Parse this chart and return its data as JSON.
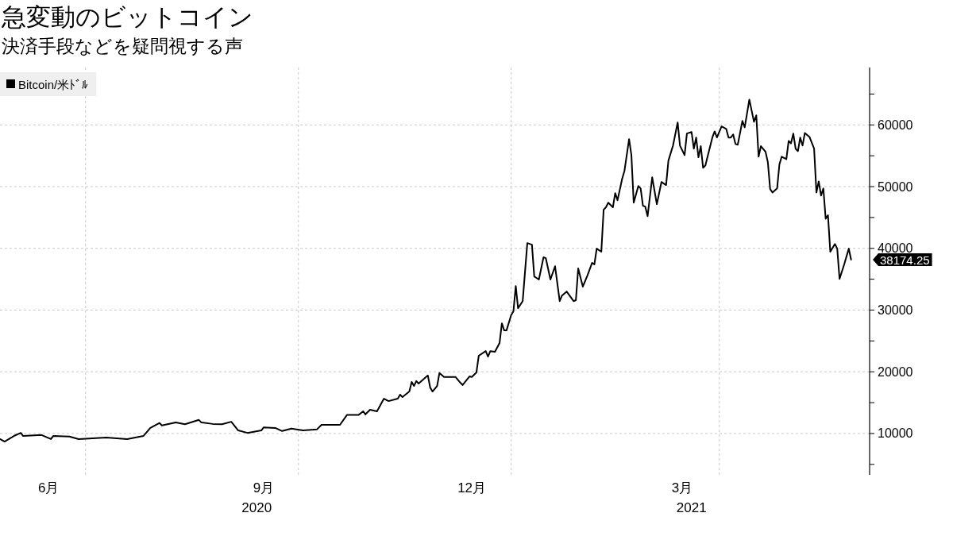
{
  "chart_data": {
    "type": "line",
    "title": "急変動のビットコイン",
    "subtitle": "決済手段などを疑問視する声",
    "x": [
      "2020-05-25",
      "2020-05-27",
      "2020-05-31",
      "2020-06-03",
      "2020-06-04",
      "2020-06-12",
      "2020-06-16",
      "2020-06-17",
      "2020-06-24",
      "2020-06-28",
      "2020-07-10",
      "2020-07-19",
      "2020-07-26",
      "2020-07-29",
      "2020-08-02",
      "2020-08-03",
      "2020-08-09",
      "2020-08-13",
      "2020-08-19",
      "2020-08-20",
      "2020-08-25",
      "2020-08-29",
      "2020-09-02",
      "2020-09-05",
      "2020-09-09",
      "2020-09-15",
      "2020-09-16",
      "2020-09-21",
      "2020-09-24",
      "2020-09-28",
      "2020-10-03",
      "2020-10-09",
      "2020-10-11",
      "2020-10-19",
      "2020-10-22",
      "2020-10-27",
      "2020-10-29",
      "2020-10-30",
      "2020-11-01",
      "2020-11-04",
      "2020-11-07",
      "2020-11-09",
      "2020-11-13",
      "2020-11-14",
      "2020-11-15",
      "2020-11-18",
      "2020-11-19",
      "2020-11-20",
      "2020-11-21",
      "2020-11-22",
      "2020-11-26",
      "2020-11-27",
      "2020-11-28",
      "2020-11-30",
      "2020-12-01",
      "2020-12-03",
      "2020-12-08",
      "2020-12-10",
      "2020-12-11",
      "2020-12-14",
      "2020-12-15",
      "2020-12-17",
      "2020-12-18",
      "2020-12-21",
      "2020-12-22",
      "2020-12-23",
      "2020-12-25",
      "2020-12-27",
      "2020-12-28",
      "2020-12-29",
      "2020-12-30",
      "2021-01-01",
      "2021-01-02",
      "2021-01-03",
      "2021-01-04",
      "2021-01-06",
      "2021-01-08",
      "2021-01-10",
      "2021-01-11",
      "2021-01-13",
      "2021-01-15",
      "2021-01-16",
      "2021-01-18",
      "2021-01-20",
      "2021-01-22",
      "2021-01-23",
      "2021-01-25",
      "2021-01-28",
      "2021-01-29",
      "2021-01-30",
      "2021-02-01",
      "2021-02-03",
      "2021-02-05",
      "2021-02-06",
      "2021-02-07",
      "2021-02-09",
      "2021-02-10",
      "2021-02-11",
      "2021-02-12",
      "2021-02-14",
      "2021-02-15",
      "2021-02-16",
      "2021-02-18",
      "2021-02-19",
      "2021-02-21",
      "2021-02-22",
      "2021-02-23",
      "2021-02-25",
      "2021-02-26",
      "2021-02-27",
      "2021-02-28",
      "2021-03-01",
      "2021-03-03",
      "2021-03-05",
      "2021-03-07",
      "2021-03-09",
      "2021-03-10",
      "2021-03-12",
      "2021-03-14",
      "2021-03-15",
      "2021-03-17",
      "2021-03-18",
      "2021-03-20",
      "2021-03-21",
      "2021-03-22",
      "2021-03-23",
      "2021-03-24",
      "2021-03-25",
      "2021-03-26",
      "2021-03-29",
      "2021-03-30",
      "2021-03-31",
      "2021-04-02",
      "2021-04-04",
      "2021-04-05",
      "2021-04-06",
      "2021-04-07",
      "2021-04-08",
      "2021-04-09",
      "2021-04-11",
      "2021-04-12",
      "2021-04-14",
      "2021-04-16",
      "2021-04-17",
      "2021-04-18",
      "2021-04-19",
      "2021-04-21",
      "2021-04-22",
      "2021-04-23",
      "2021-04-24",
      "2021-04-26",
      "2021-04-27",
      "2021-04-28",
      "2021-04-30",
      "2021-05-01",
      "2021-05-02",
      "2021-05-03",
      "2021-05-04",
      "2021-05-05",
      "2021-05-06",
      "2021-05-07",
      "2021-05-08",
      "2021-05-10",
      "2021-05-12",
      "2021-05-13",
      "2021-05-14",
      "2021-05-15",
      "2021-05-16",
      "2021-05-17",
      "2021-05-18",
      "2021-05-19",
      "2021-05-21",
      "2021-05-22",
      "2021-05-23",
      "2021-05-25",
      "2021-05-27",
      "2021-05-28"
    ],
    "series": [
      {
        "name": "Bitcoin/米ﾄﾞﾙ",
        "color": "#000000",
        "values": [
          9100,
          8700,
          9600,
          10100,
          9600,
          9750,
          9100,
          9600,
          9500,
          9100,
          9350,
          9100,
          9600,
          10900,
          11700,
          11300,
          11800,
          11500,
          12200,
          11800,
          11550,
          11500,
          11900,
          10500,
          10100,
          10500,
          11000,
          10900,
          10400,
          10800,
          10500,
          10650,
          11400,
          11400,
          13000,
          13000,
          13600,
          13100,
          13850,
          13600,
          15650,
          15250,
          15650,
          16300,
          15900,
          16800,
          18350,
          17700,
          18500,
          18100,
          19400,
          17450,
          16800,
          17700,
          19800,
          19150,
          19150,
          18250,
          17850,
          19250,
          19150,
          19900,
          22600,
          23350,
          22450,
          23350,
          23250,
          24650,
          27850,
          26700,
          26700,
          29150,
          29800,
          33900,
          30300,
          31450,
          40850,
          40600,
          35450,
          34950,
          38550,
          38400,
          34950,
          37100,
          31450,
          32350,
          33000,
          31450,
          31600,
          36750,
          33800,
          35600,
          37650,
          37400,
          39950,
          39450,
          46250,
          46650,
          47400,
          46650,
          48950,
          47800,
          51250,
          52550,
          57700,
          55100,
          47400,
          50100,
          49700,
          46900,
          46750,
          45200,
          51500,
          47150,
          50750,
          50250,
          54200,
          56650,
          60400,
          56650,
          55100,
          58600,
          58850,
          56150,
          57950,
          54750,
          56550,
          53050,
          53450,
          57950,
          58950,
          57950,
          59750,
          59350,
          57950,
          57950,
          58450,
          56900,
          56800,
          60650,
          59600,
          64100,
          60500,
          61550,
          54850,
          56550,
          55650,
          53950,
          49600,
          49050,
          49700,
          53600,
          54850,
          54450,
          57400,
          57000,
          58600,
          56150,
          55750,
          57950,
          56650,
          58700,
          58050,
          56150,
          49050,
          50850,
          48550,
          49700,
          44800,
          45350,
          39450,
          40700,
          39950,
          35050,
          37400,
          39950,
          38174.25
        ]
      }
    ],
    "xlim": [
      "2020-05-25",
      "2021-06-05"
    ],
    "xticks": [
      {
        "value": "2020-06-15",
        "label": "6月"
      },
      {
        "value": "2020-07-01",
        "label": null
      },
      {
        "value": "2020-09-16",
        "label": "9月"
      },
      {
        "value": "2020-10-01",
        "label": null
      },
      {
        "value": "2020-12-15",
        "label": "12月"
      },
      {
        "value": "2021-01-01",
        "label": null
      },
      {
        "value": "2021-03-16",
        "label": "3月"
      },
      {
        "value": "2021-04-01",
        "label": null
      }
    ],
    "x2lim": [
      "2020-05-25",
      "2021-06-05"
    ],
    "x2ticks": [
      {
        "value": "2020-09-13",
        "label": "2020"
      },
      {
        "value": "2021-03-20",
        "label": "2021"
      }
    ],
    "ylim": [
      3300,
      69300
    ],
    "yticks": [
      {
        "value": 5000,
        "label": null
      },
      10000,
      {
        "value": 15000,
        "label": null
      },
      20000,
      {
        "value": 25000,
        "label": null
      },
      30000,
      {
        "value": 35000,
        "label": null
      },
      40000,
      {
        "value": 45000,
        "label": null
      },
      50000,
      {
        "value": 55000,
        "label": null
      },
      60000,
      {
        "value": 65000,
        "label": null
      }
    ],
    "grid": true,
    "legend": "top left",
    "annotations": [
      {
        "text": "38174.25",
        "x": "2021-05-28",
        "y": 38174.25
      }
    ]
  }
}
